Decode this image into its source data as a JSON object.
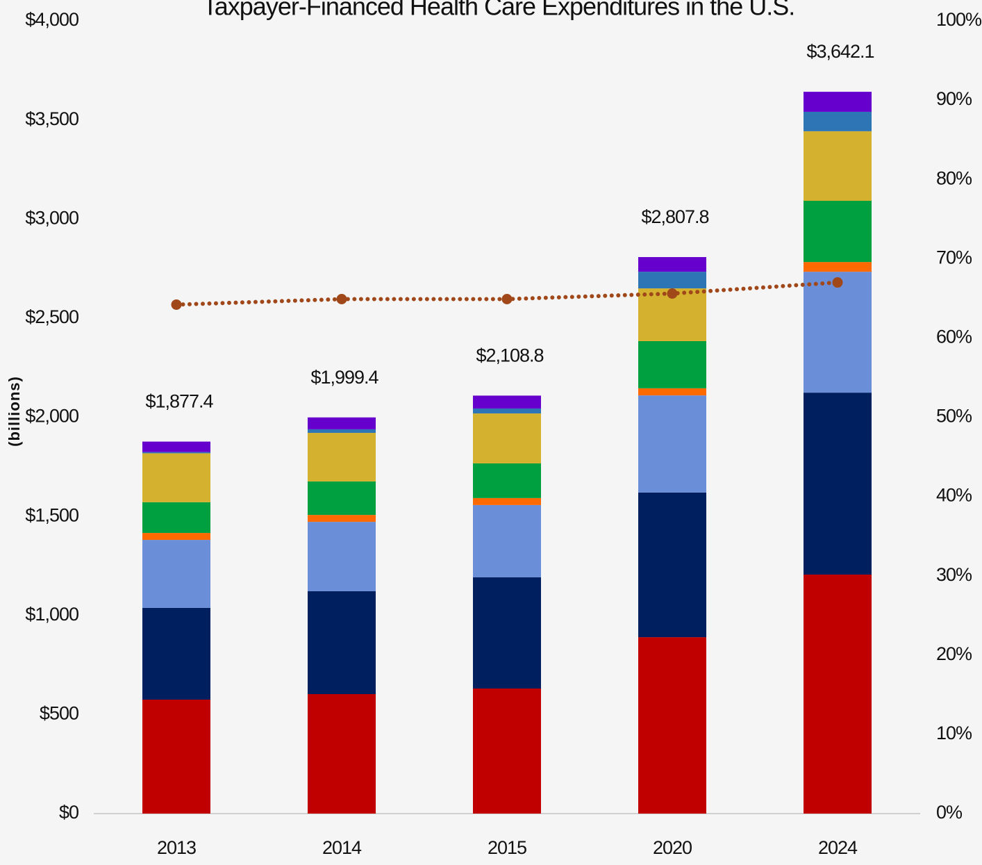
{
  "chart_data": {
    "type": "stacked_bar",
    "title": "Taxpayer-Financed Health Care Expenditures in the U.S.",
    "y_label": "(billions)",
    "categories": [
      "2013",
      "2014",
      "2015",
      "2020",
      "2024"
    ],
    "series": [
      {
        "color": "#c00000",
        "values": [
          575,
          603,
          631,
          890,
          1206
        ]
      },
      {
        "color": "#001f5f",
        "values": [
          463,
          519,
          561,
          730,
          918
        ]
      },
      {
        "color": "#6a8fd8",
        "values": [
          343,
          350,
          365,
          490,
          610
        ]
      },
      {
        "color": "#ff6a00",
        "values": [
          35,
          35,
          35,
          36,
          49
        ]
      },
      {
        "color": "#00a040",
        "values": [
          155,
          169,
          175,
          238,
          309
        ]
      },
      {
        "color": "#d4b22f",
        "values": [
          247,
          245,
          252,
          266,
          351
        ]
      },
      {
        "color": "#2e75b6",
        "values": [
          6,
          18,
          25,
          84,
          98
        ]
      },
      {
        "color": "#6600cc",
        "values": [
          53,
          60,
          65,
          74,
          101
        ]
      },
      {
        "type": "line",
        "axis": "y2",
        "color": "#a0481a",
        "values": [
          64.2,
          64.9,
          64.9,
          65.6,
          67.0
        ]
      }
    ],
    "totals": [
      1877.4,
      1999.4,
      2108.8,
      2807.8,
      3642.1
    ],
    "total_labels": [
      "$1,877.4",
      "$1,999.4",
      "$2,108.8",
      "$2,807.8",
      "$3,642.1"
    ],
    "ylim": [
      0,
      4000
    ],
    "yticks": [
      {
        "value": 0,
        "label": "$0"
      },
      {
        "value": 500,
        "label": "$500"
      },
      {
        "value": 1000,
        "label": "$1,000"
      },
      {
        "value": 1500,
        "label": "$1,500"
      },
      {
        "value": 2000,
        "label": "$2,000"
      },
      {
        "value": 2500,
        "label": "$2,500"
      },
      {
        "value": 3000,
        "label": "$3,000"
      },
      {
        "value": 3500,
        "label": "$3,500"
      },
      {
        "value": 4000,
        "label": "$4,000"
      }
    ],
    "y2lim": [
      0,
      100
    ],
    "y2ticks": [
      {
        "value": 0,
        "label": "0%"
      },
      {
        "value": 10,
        "label": "10%"
      },
      {
        "value": 20,
        "label": "20%"
      },
      {
        "value": 30,
        "label": "30%"
      },
      {
        "value": 40,
        "label": "40%"
      },
      {
        "value": 50,
        "label": "50%"
      },
      {
        "value": 60,
        "label": "60%"
      },
      {
        "value": 70,
        "label": "70%"
      },
      {
        "value": 80,
        "label": "80%"
      },
      {
        "value": 90,
        "label": "90%"
      },
      {
        "value": 100,
        "label": "100%"
      }
    ]
  }
}
